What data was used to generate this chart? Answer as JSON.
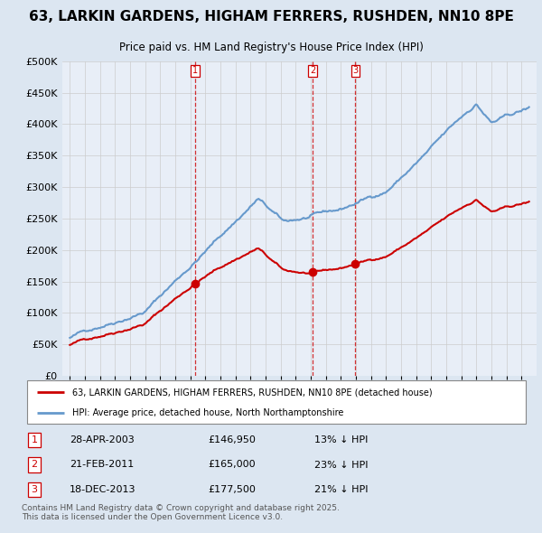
{
  "title": "63, LARKIN GARDENS, HIGHAM FERRERS, RUSHDEN, NN10 8PE",
  "subtitle": "Price paid vs. HM Land Registry's House Price Index (HPI)",
  "legend_line1": "63, LARKIN GARDENS, HIGHAM FERRERS, RUSHDEN, NN10 8PE (detached house)",
  "legend_line2": "HPI: Average price, detached house, North Northamptonshire",
  "footnote": "Contains HM Land Registry data © Crown copyright and database right 2025.\nThis data is licensed under the Open Government Licence v3.0.",
  "transactions": [
    {
      "num": 1,
      "date": "28-APR-2003",
      "price": 146950,
      "year": 2003.32,
      "pct": "13% ↓ HPI"
    },
    {
      "num": 2,
      "date": "21-FEB-2011",
      "price": 165000,
      "year": 2011.13,
      "pct": "23% ↓ HPI"
    },
    {
      "num": 3,
      "date": "18-DEC-2013",
      "price": 177500,
      "year": 2013.96,
      "pct": "21% ↓ HPI"
    }
  ],
  "price_color": "#cc0000",
  "hpi_color": "#6699cc",
  "vline_color": "#cc0000",
  "background_color": "#dce6f1",
  "plot_bg": "#e8eef7",
  "ylim": [
    0,
    500000
  ],
  "yticks": [
    0,
    50000,
    100000,
    150000,
    200000,
    250000,
    300000,
    350000,
    400000,
    450000,
    500000
  ],
  "xlim_start": 1994.5,
  "xlim_end": 2026.0,
  "grid_color": "#cccccc"
}
